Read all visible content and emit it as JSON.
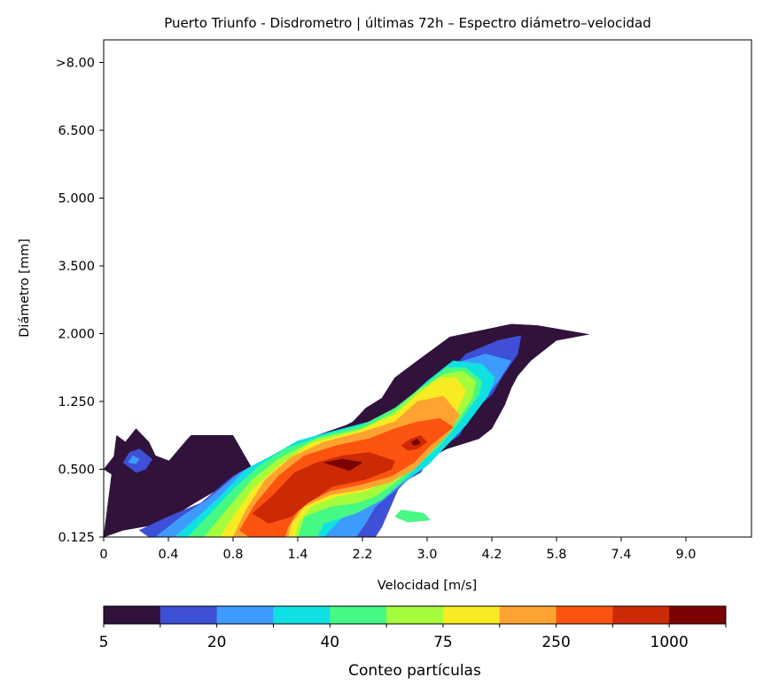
{
  "chart_data": {
    "type": "heatmap",
    "subtype": "filled-contour",
    "title": "Puerto Triunfo - Disdrometro | últimas 72h – Espectro diámetro–velocidad",
    "xlabel": "Velocidad [m/s]",
    "ylabel": "Diámetro [mm]",
    "x_ticks": [
      "0",
      "0.4",
      "0.8",
      "1.4",
      "2.2",
      "3.0",
      "4.2",
      "5.8",
      "7.4",
      "9.0"
    ],
    "y_ticks": [
      "0.125",
      "0.500",
      "1.250",
      "2.000",
      "3.500",
      "5.000",
      "6.500",
      ">8.00"
    ],
    "grid": false,
    "colorbar": {
      "label": "Conteo partículas",
      "orientation": "horizontal",
      "placement": "bottom",
      "tick_labels": [
        "5",
        "20",
        "40",
        "75",
        "250",
        "1000"
      ],
      "levels": 11,
      "colors": [
        "#30123b",
        "#3e4fd8",
        "#3e9bfe",
        "#0fe1e2",
        "#46f884",
        "#a4fc3c",
        "#f9eb21",
        "#fea331",
        "#fc5410",
        "#cb2a04",
        "#7a0403"
      ]
    },
    "contours": [
      {
        "level": 0,
        "color": "#30123b",
        "regions": [
          [
            [
              0.2,
              1.5
            ],
            [
              0.9,
              1.0
            ],
            [
              1.3,
              1.45
            ],
            [
              1.35,
              1.5
            ],
            [
              2.0,
              1.5
            ],
            [
              2.3,
              1.0
            ],
            [
              1.4,
              0.5
            ],
            [
              0.9,
              0.2
            ],
            [
              0.3,
              0.1
            ],
            [
              0,
              0
            ]
          ],
          [
            [
              2.4,
              0.95
            ],
            [
              3.3,
              1.5
            ],
            [
              3.75,
              1.65
            ],
            [
              3.85,
              1.7
            ],
            [
              4.05,
              1.9
            ],
            [
              4.3,
              2.05
            ],
            [
              4.5,
              2.35
            ],
            [
              4.85,
              2.6
            ],
            [
              5.35,
              2.95
            ],
            [
              6.3,
              3.14
            ],
            [
              6.7,
              3.12
            ],
            [
              7.5,
              2.99
            ],
            [
              7.0,
              2.9
            ],
            [
              6.6,
              2.6
            ],
            [
              6.4,
              2.38
            ],
            [
              6.3,
              2.2
            ],
            [
              6.2,
              1.95
            ],
            [
              6.0,
              1.6
            ],
            [
              5.8,
              1.45
            ],
            [
              5.3,
              1.3
            ],
            [
              4.8,
              1.05
            ],
            [
              4.6,
              0.82
            ],
            [
              4.4,
              0.55
            ],
            [
              4.1,
              0.0
            ]
          ],
          [
            [
              0,
              1.0
            ],
            [
              0.25,
              1.3
            ],
            [
              0.5,
              1.6
            ],
            [
              0.7,
              1.4
            ],
            [
              0.8,
              1.2
            ],
            [
              1.35,
              1.0
            ],
            [
              0.6,
              0.8
            ],
            [
              0.5,
              0.75
            ],
            [
              0.25,
              0.85
            ]
          ],
          [
            [
              1.4,
              1.0
            ],
            [
              1.6,
              1.02
            ],
            [
              1.95,
              0.95
            ],
            [
              2.0,
              0.9
            ],
            [
              1.6,
              0.85
            ]
          ]
        ]
      },
      {
        "level": 1,
        "color": "#3e4fd8",
        "regions": [
          [
            [
              0.3,
              1.1
            ],
            [
              0.4,
              1.25
            ],
            [
              0.55,
              1.3
            ],
            [
              0.75,
              1.15
            ],
            [
              0.65,
              1.0
            ],
            [
              0.5,
              0.95
            ]
          ],
          [
            [
              0.55,
              0.1
            ],
            [
              1.0,
              0.3
            ],
            [
              1.5,
              0.5
            ],
            [
              2.0,
              0.9
            ],
            [
              2.4,
              1.1
            ],
            [
              3.0,
              1.35
            ],
            [
              3.5,
              1.5
            ],
            [
              4.0,
              1.55
            ],
            [
              4.5,
              1.7
            ],
            [
              4.8,
              2.0
            ],
            [
              5.2,
              2.3
            ],
            [
              5.6,
              2.7
            ],
            [
              6.1,
              2.9
            ],
            [
              6.45,
              2.97
            ],
            [
              6.4,
              2.7
            ],
            [
              6.15,
              2.35
            ],
            [
              6.0,
              2.1
            ],
            [
              5.7,
              1.85
            ],
            [
              5.5,
              1.5
            ],
            [
              5.1,
              1.25
            ],
            [
              4.9,
              0.95
            ],
            [
              4.7,
              0.85
            ],
            [
              4.55,
              0.7
            ],
            [
              4.3,
              0.15
            ],
            [
              4.2,
              0.0
            ],
            [
              0.7,
              0.0
            ]
          ]
        ]
      },
      {
        "level": 2,
        "color": "#3e9bfe",
        "regions": [
          [
            [
              0.38,
              1.1
            ],
            [
              0.45,
              1.2
            ],
            [
              0.55,
              1.15
            ],
            [
              0.5,
              1.08
            ]
          ],
          [
            [
              0.8,
              0.0
            ],
            [
              1.2,
              0.3
            ],
            [
              1.6,
              0.55
            ],
            [
              2.1,
              0.95
            ],
            [
              2.5,
              1.15
            ],
            [
              3.0,
              1.4
            ],
            [
              3.5,
              1.55
            ],
            [
              4.1,
              1.65
            ],
            [
              4.6,
              1.9
            ],
            [
              5.0,
              2.2
            ],
            [
              5.4,
              2.55
            ],
            [
              5.9,
              2.7
            ],
            [
              6.3,
              2.6
            ],
            [
              6.1,
              2.3
            ],
            [
              5.85,
              2.0
            ],
            [
              5.5,
              1.6
            ],
            [
              5.2,
              1.3
            ],
            [
              4.9,
              1.0
            ],
            [
              4.65,
              0.8
            ],
            [
              4.2,
              0.45
            ],
            [
              4.05,
              0.2
            ],
            [
              3.9,
              0.0
            ]
          ]
        ]
      },
      {
        "level": 3,
        "color": "#0fe1e2",
        "regions": [
          [
            [
              1.1,
              0.0
            ],
            [
              1.4,
              0.25
            ],
            [
              1.8,
              0.6
            ],
            [
              2.2,
              1.0
            ],
            [
              2.6,
              1.2
            ],
            [
              3.0,
              1.42
            ],
            [
              3.5,
              1.55
            ],
            [
              4.1,
              1.7
            ],
            [
              4.6,
              1.95
            ],
            [
              5.0,
              2.3
            ],
            [
              5.4,
              2.6
            ],
            [
              5.85,
              2.55
            ],
            [
              6.05,
              2.35
            ],
            [
              5.95,
              2.1
            ],
            [
              5.6,
              1.65
            ],
            [
              5.3,
              1.35
            ],
            [
              5.0,
              1.05
            ],
            [
              4.6,
              0.8
            ],
            [
              4.1,
              0.55
            ],
            [
              3.7,
              0.3
            ],
            [
              3.5,
              0.1
            ],
            [
              3.4,
              0.0
            ]
          ]
        ]
      },
      {
        "level": 4,
        "color": "#46f884",
        "regions": [
          [
            [
              1.3,
              0.0
            ],
            [
              1.6,
              0.3
            ],
            [
              2.0,
              0.7
            ],
            [
              2.4,
              1.05
            ],
            [
              2.8,
              1.3
            ],
            [
              3.4,
              1.5
            ],
            [
              4.0,
              1.65
            ],
            [
              4.5,
              1.9
            ],
            [
              4.9,
              2.2
            ],
            [
              5.3,
              2.5
            ],
            [
              5.6,
              2.5
            ],
            [
              5.85,
              2.3
            ],
            [
              5.8,
              2.1
            ],
            [
              5.5,
              1.7
            ],
            [
              5.2,
              1.35
            ],
            [
              4.85,
              1.05
            ],
            [
              4.6,
              0.8
            ],
            [
              4.3,
              0.55
            ],
            [
              3.9,
              0.35
            ],
            [
              3.4,
              0.2
            ],
            [
              3.3,
              0.0
            ]
          ],
          [
            [
              4.6,
              0.4
            ],
            [
              4.95,
              0.35
            ],
            [
              5.05,
              0.25
            ],
            [
              4.7,
              0.22
            ],
            [
              4.5,
              0.3
            ]
          ]
        ]
      },
      {
        "level": 5,
        "color": "#a4fc3c",
        "regions": [
          [
            [
              1.55,
              0.0
            ],
            [
              1.9,
              0.4
            ],
            [
              2.3,
              0.85
            ],
            [
              2.7,
              1.15
            ],
            [
              3.3,
              1.45
            ],
            [
              4.0,
              1.6
            ],
            [
              4.5,
              1.85
            ],
            [
              4.85,
              2.15
            ],
            [
              5.25,
              2.4
            ],
            [
              5.55,
              2.45
            ],
            [
              5.75,
              2.3
            ],
            [
              5.7,
              2.05
            ],
            [
              5.45,
              1.7
            ],
            [
              5.15,
              1.35
            ],
            [
              4.8,
              1.05
            ],
            [
              4.5,
              0.8
            ],
            [
              4.2,
              0.6
            ],
            [
              3.9,
              0.5
            ],
            [
              3.5,
              0.45
            ],
            [
              3.1,
              0.3
            ],
            [
              3.0,
              0.0
            ]
          ]
        ]
      },
      {
        "level": 6,
        "color": "#f9eb21",
        "regions": [
          [
            [
              1.8,
              0.0
            ],
            [
              2.0,
              0.3
            ],
            [
              2.3,
              0.7
            ],
            [
              2.7,
              1.05
            ],
            [
              3.2,
              1.38
            ],
            [
              3.9,
              1.55
            ],
            [
              4.5,
              1.8
            ],
            [
              4.85,
              2.1
            ],
            [
              5.2,
              2.35
            ],
            [
              5.45,
              2.35
            ],
            [
              5.6,
              2.15
            ],
            [
              5.45,
              1.85
            ],
            [
              5.15,
              1.45
            ],
            [
              4.8,
              1.1
            ],
            [
              4.45,
              0.85
            ],
            [
              4.05,
              0.68
            ],
            [
              3.6,
              0.6
            ],
            [
              3.2,
              0.45
            ],
            [
              3.0,
              0.2
            ],
            [
              2.95,
              0.0
            ]
          ]
        ]
      },
      {
        "level": 7,
        "color": "#fea331",
        "regions": [
          [
            [
              2.0,
              0.0
            ],
            [
              2.2,
              0.4
            ],
            [
              2.5,
              0.85
            ],
            [
              2.9,
              1.18
            ],
            [
              3.4,
              1.4
            ],
            [
              4.0,
              1.55
            ],
            [
              4.5,
              1.7
            ],
            [
              4.85,
              2.0
            ],
            [
              5.25,
              2.08
            ],
            [
              5.5,
              1.8
            ],
            [
              5.35,
              1.55
            ],
            [
              5.1,
              1.3
            ],
            [
              4.8,
              1.0
            ],
            [
              4.4,
              0.8
            ],
            [
              4.0,
              0.7
            ],
            [
              3.5,
              0.62
            ],
            [
              3.1,
              0.45
            ],
            [
              2.9,
              0.2
            ],
            [
              2.85,
              0.0
            ]
          ]
        ]
      },
      {
        "level": 8,
        "color": "#fc5410",
        "regions": [
          [
            [
              2.1,
              0.1
            ],
            [
              2.35,
              0.5
            ],
            [
              2.7,
              0.9
            ],
            [
              3.1,
              1.2
            ],
            [
              3.6,
              1.35
            ],
            [
              4.1,
              1.45
            ],
            [
              4.5,
              1.6
            ],
            [
              4.85,
              1.7
            ],
            [
              5.2,
              1.75
            ],
            [
              5.4,
              1.62
            ],
            [
              5.05,
              1.35
            ],
            [
              4.8,
              1.1
            ],
            [
              4.45,
              0.9
            ],
            [
              4.0,
              0.78
            ],
            [
              3.5,
              0.68
            ],
            [
              3.05,
              0.45
            ],
            [
              2.85,
              0.15
            ],
            [
              2.8,
              0.0
            ],
            [
              2.25,
              0.0
            ]
          ]
        ]
      },
      {
        "level": 9,
        "color": "#cb2a04",
        "regions": [
          [
            [
              2.3,
              0.35
            ],
            [
              2.6,
              0.6
            ],
            [
              2.95,
              0.95
            ],
            [
              3.3,
              1.1
            ],
            [
              3.7,
              1.2
            ],
            [
              4.1,
              1.25
            ],
            [
              4.5,
              1.12
            ],
            [
              4.45,
              1.0
            ],
            [
              4.05,
              0.85
            ],
            [
              3.55,
              0.75
            ],
            [
              3.15,
              0.5
            ],
            [
              2.9,
              0.3
            ],
            [
              2.55,
              0.2
            ]
          ],
          [
            [
              4.6,
              1.35
            ],
            [
              4.75,
              1.45
            ],
            [
              4.9,
              1.5
            ],
            [
              5.0,
              1.4
            ],
            [
              4.85,
              1.3
            ],
            [
              4.7,
              1.28
            ]
          ]
        ]
      },
      {
        "level": 10,
        "color": "#7a0403",
        "regions": [
          [
            [
              3.4,
              1.1
            ],
            [
              3.7,
              1.15
            ],
            [
              4.0,
              1.1
            ],
            [
              3.8,
              0.98
            ],
            [
              3.6,
              1.04
            ]
          ],
          [
            [
              4.75,
              1.4
            ],
            [
              4.85,
              1.45
            ],
            [
              4.9,
              1.38
            ],
            [
              4.8,
              1.35
            ]
          ]
        ]
      }
    ]
  }
}
